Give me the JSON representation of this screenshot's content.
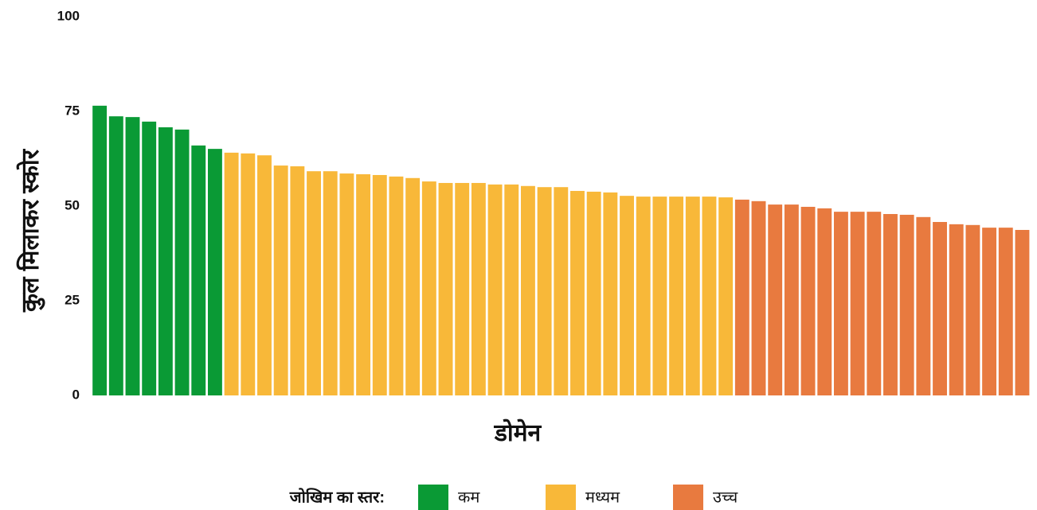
{
  "chart_data": {
    "type": "bar",
    "y_label": "कुल मिलाकर स्कोर",
    "x_label": "डोमेन",
    "legend_title": "जोखिम का स्तर:",
    "legend_position": "bottom",
    "ylim": [
      0,
      100
    ],
    "yticks": [
      0,
      25,
      50,
      75,
      100
    ],
    "grid": false,
    "categories": [
      null,
      null,
      null,
      null,
      null,
      null,
      null,
      null,
      null,
      null,
      null,
      null,
      null,
      null,
      null,
      null,
      null,
      null,
      null,
      null,
      null,
      null,
      null,
      null,
      null,
      null,
      null,
      null,
      null,
      null,
      null,
      null,
      null,
      null,
      null,
      null,
      null,
      null,
      null,
      null,
      null,
      null,
      null,
      null,
      null,
      null,
      null,
      null,
      null,
      null,
      null,
      null,
      null,
      null,
      null,
      null,
      null
    ],
    "series": [
      {
        "name": "कम",
        "color": "#0a9a35",
        "values": [
          76.5,
          73.7,
          73.5,
          72.3,
          70.8,
          70.2,
          66.0,
          65.1,
          null,
          null,
          null,
          null,
          null,
          null,
          null,
          null,
          null,
          null,
          null,
          null,
          null,
          null,
          null,
          null,
          null,
          null,
          null,
          null,
          null,
          null,
          null,
          null,
          null,
          null,
          null,
          null,
          null,
          null,
          null,
          null,
          null,
          null,
          null,
          null,
          null,
          null,
          null,
          null,
          null,
          null,
          null,
          null,
          null,
          null,
          null,
          null,
          null
        ]
      },
      {
        "name": "मध्यम",
        "color": "#f8b839",
        "values": [
          null,
          null,
          null,
          null,
          null,
          null,
          null,
          null,
          64.1,
          63.9,
          63.4,
          60.7,
          60.5,
          59.2,
          59.2,
          58.6,
          58.4,
          58.2,
          57.8,
          57.4,
          56.5,
          56.1,
          56.1,
          56.1,
          55.7,
          55.7,
          55.3,
          55.0,
          55.0,
          54.0,
          53.8,
          53.6,
          52.7,
          52.5,
          52.5,
          52.5,
          52.5,
          52.5,
          52.3,
          null,
          null,
          null,
          null,
          null,
          null,
          null,
          null,
          null,
          null,
          null,
          null,
          null,
          null,
          null,
          null,
          null,
          null
        ]
      },
      {
        "name": "उच्च",
        "color": "#e87a3f",
        "values": [
          null,
          null,
          null,
          null,
          null,
          null,
          null,
          null,
          null,
          null,
          null,
          null,
          null,
          null,
          null,
          null,
          null,
          null,
          null,
          null,
          null,
          null,
          null,
          null,
          null,
          null,
          null,
          null,
          null,
          null,
          null,
          null,
          null,
          null,
          null,
          null,
          null,
          null,
          null,
          51.7,
          51.3,
          50.4,
          50.4,
          49.8,
          49.4,
          48.5,
          48.5,
          48.5,
          47.9,
          47.7,
          47.1,
          45.8,
          45.2,
          45.0,
          44.3,
          44.3,
          43.7
        ]
      }
    ]
  }
}
